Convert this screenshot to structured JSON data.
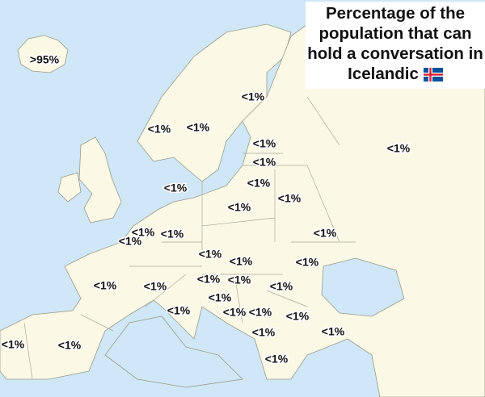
{
  "title": "Percentage of the population that can hold a conversation in Icelandic",
  "labels": [
    ">95%",
    "<1%",
    "<1%",
    "<1%",
    "<1%",
    "<1%",
    "<1%",
    "<1%",
    "<1%",
    "<1%",
    "<1%",
    "<1%",
    "<1%",
    "<1%",
    "<1%",
    "<1%",
    "<1%",
    "<1%",
    "<1%",
    "<1%",
    "<1%",
    "<1%",
    "<1%",
    "<1%",
    "<1%",
    "<1%",
    "<1%",
    "<1%",
    "<1%",
    "<1%",
    "<1%",
    "<1%",
    "<1%"
  ]
}
